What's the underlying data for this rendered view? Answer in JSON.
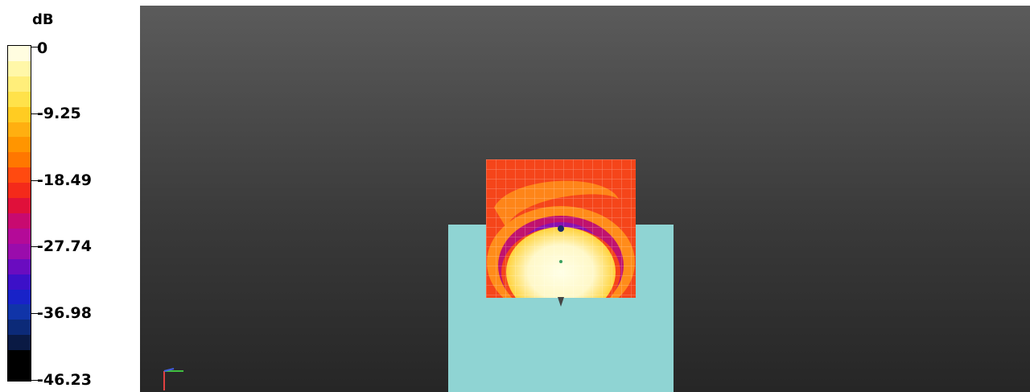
{
  "legend": {
    "unit": "dB",
    "ticks": [
      {
        "label": "0",
        "level": 0
      },
      {
        "label": "-9.25",
        "level": 0.2
      },
      {
        "label": "-18.49",
        "level": 0.4
      },
      {
        "label": "-27.74",
        "level": 0.6
      },
      {
        "label": "-36.98",
        "level": 0.8
      },
      {
        "label": "-46.23",
        "level": 1.0
      }
    ],
    "colors": [
      "#fffde0",
      "#fff7a8",
      "#ffee7a",
      "#ffe24a",
      "#ffcc22",
      "#ffaf10",
      "#ff9500",
      "#ff7700",
      "#ff4a10",
      "#f42a1a",
      "#e0103a",
      "#c80a70",
      "#b40a98",
      "#9a0cac",
      "#6a0cc0",
      "#3c10c8",
      "#1822c8",
      "#1034a8",
      "#0c2a78",
      "#0a1a44",
      "#000000",
      "#000000"
    ]
  },
  "viewport": {
    "phantom_color": "#8fd4d3",
    "map_colors": {
      "outer": "#f5451a",
      "ring_orange": "#ff8c1a",
      "ring_magenta": "#c0126e",
      "ring_purple": "#8a10b0",
      "core_yellow": "#ffd23a",
      "core_pale": "#fff8c8",
      "core_white": "#ffffe6"
    },
    "axis_icons": [
      "axis-x-icon",
      "axis-y-icon",
      "axis-z-icon"
    ]
  }
}
